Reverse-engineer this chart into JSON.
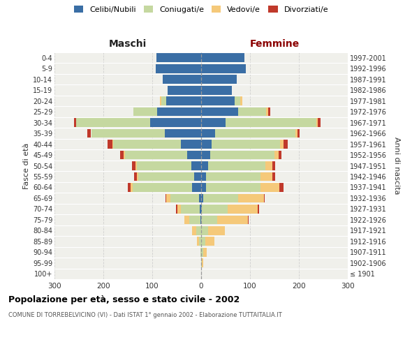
{
  "age_groups": [
    "100+",
    "95-99",
    "90-94",
    "85-89",
    "80-84",
    "75-79",
    "70-74",
    "65-69",
    "60-64",
    "55-59",
    "50-54",
    "45-49",
    "40-44",
    "35-39",
    "30-34",
    "25-29",
    "20-24",
    "15-19",
    "10-14",
    "5-9",
    "0-4"
  ],
  "birth_years": [
    "≤ 1901",
    "1902-1906",
    "1907-1911",
    "1912-1916",
    "1917-1921",
    "1922-1926",
    "1927-1931",
    "1932-1936",
    "1937-1941",
    "1942-1946",
    "1947-1951",
    "1952-1956",
    "1957-1961",
    "1962-1966",
    "1967-1971",
    "1972-1976",
    "1977-1981",
    "1982-1986",
    "1987-1991",
    "1992-1996",
    "1997-2001"
  ],
  "maschi_celibi": [
    0,
    0,
    0,
    0,
    0,
    2,
    3,
    5,
    18,
    14,
    20,
    28,
    42,
    75,
    105,
    90,
    72,
    68,
    78,
    93,
    92
  ],
  "maschi_coniugati": [
    0,
    0,
    2,
    5,
    10,
    22,
    38,
    58,
    122,
    115,
    112,
    128,
    138,
    150,
    150,
    48,
    10,
    0,
    0,
    0,
    0
  ],
  "maschi_vedovi": [
    0,
    0,
    0,
    3,
    8,
    10,
    8,
    8,
    5,
    3,
    2,
    2,
    2,
    0,
    0,
    0,
    2,
    0,
    0,
    0,
    0
  ],
  "maschi_divorziati": [
    0,
    0,
    0,
    0,
    0,
    0,
    2,
    2,
    5,
    5,
    8,
    8,
    10,
    8,
    5,
    0,
    0,
    0,
    0,
    0,
    0
  ],
  "femmine_nubili": [
    0,
    0,
    0,
    0,
    0,
    0,
    2,
    4,
    10,
    10,
    14,
    18,
    22,
    28,
    50,
    75,
    68,
    63,
    73,
    92,
    88
  ],
  "femmine_coniugate": [
    0,
    2,
    4,
    9,
    14,
    33,
    52,
    72,
    112,
    112,
    118,
    132,
    140,
    165,
    185,
    58,
    12,
    0,
    0,
    0,
    0
  ],
  "femmine_vedove": [
    0,
    2,
    8,
    18,
    35,
    62,
    62,
    52,
    38,
    24,
    14,
    9,
    7,
    4,
    4,
    4,
    4,
    0,
    0,
    0,
    0
  ],
  "femmine_divorziate": [
    0,
    0,
    0,
    0,
    0,
    2,
    2,
    2,
    8,
    5,
    5,
    5,
    8,
    5,
    5,
    5,
    0,
    0,
    0,
    0,
    0
  ],
  "color_celibi": "#3a6ea5",
  "color_coniugati": "#c5d8a0",
  "color_vedovi": "#f5c97a",
  "color_divorziati": "#c0392b",
  "xlim": 300,
  "bg_color": "#f0f0eb",
  "grid_color": "#cccccc",
  "title": "Popolazione per età, sesso e stato civile - 2002",
  "subtitle": "COMUNE DI TORREBELVICINO (VI) - Dati ISTAT 1° gennaio 2002 - Elaborazione TUTTAITALIA.IT",
  "label_maschi": "Maschi",
  "label_femmine": "Femmine",
  "ylabel_left": "Fasce di età",
  "ylabel_right": "Anni di nascita",
  "legend_labels": [
    "Celibi/Nubili",
    "Coniugati/e",
    "Vedovi/e",
    "Divorziati/e"
  ]
}
